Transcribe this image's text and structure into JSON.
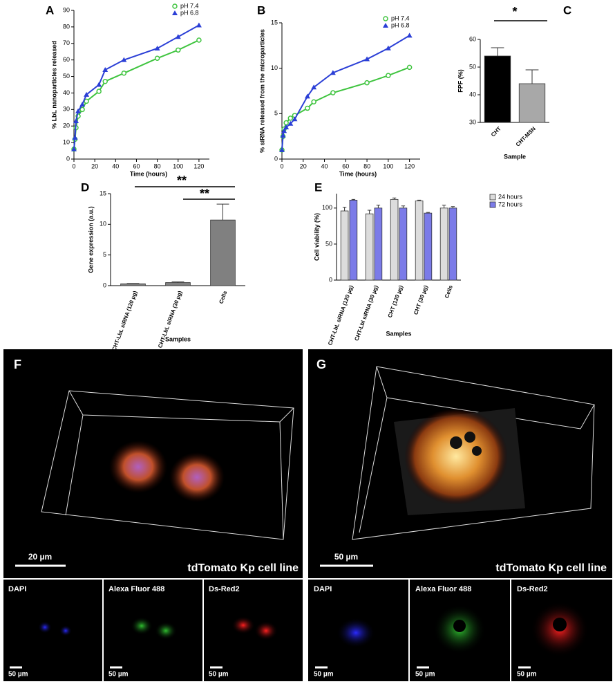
{
  "chart_data": [
    {
      "type": "line",
      "label": "A",
      "xlabel": "Time (hours)",
      "ylabel": "% LbL nanoparticles released",
      "x": [
        0,
        1,
        2,
        4,
        8,
        12,
        24,
        30,
        48,
        80,
        100,
        120
      ],
      "series": [
        {
          "name": "pH 7.4",
          "color": "#3fc43f",
          "marker": "circle",
          "values": [
            6,
            12,
            19,
            26,
            30,
            35,
            41,
            47,
            52,
            61,
            66,
            72
          ]
        },
        {
          "name": "pH 6.8",
          "color": "#2b3fd6",
          "marker": "star",
          "values": [
            6,
            13,
            23,
            29,
            33,
            39,
            45,
            54,
            60,
            67,
            74,
            81
          ]
        }
      ],
      "xlim": [
        0,
        130
      ],
      "xticks": [
        0,
        20,
        40,
        60,
        80,
        100,
        120
      ],
      "ylim": [
        0,
        90
      ],
      "yticks": [
        0,
        10,
        20,
        30,
        40,
        50,
        60,
        70,
        80,
        90
      ],
      "legend": "top-right"
    },
    {
      "type": "line",
      "label": "B",
      "xlabel": "Time (hours)",
      "ylabel": "% siRNA released from the microparticles",
      "x": [
        0,
        1,
        2,
        4,
        8,
        12,
        24,
        30,
        48,
        80,
        100,
        120
      ],
      "series": [
        {
          "name": "pH 7.4",
          "color": "#3fc43f",
          "marker": "circle",
          "values": [
            1,
            2.5,
            3.3,
            4,
            4.5,
            4.8,
            5.6,
            6.3,
            7.3,
            8.4,
            9.2,
            10.1
          ]
        },
        {
          "name": "pH 6.8",
          "color": "#2b3fd6",
          "marker": "star",
          "values": [
            1,
            2.6,
            3.1,
            3.5,
            3.9,
            4.4,
            6.9,
            7.9,
            9.5,
            11,
            12.2,
            13.6
          ]
        }
      ],
      "xlim": [
        0,
        130
      ],
      "xticks": [
        0,
        20,
        40,
        60,
        80,
        100,
        120
      ],
      "ylim": [
        0,
        15
      ],
      "yticks": [
        0,
        5,
        10,
        15
      ],
      "legend": "top-right"
    },
    {
      "type": "bar",
      "label": "C",
      "xlabel": "Sample",
      "ylabel": "FPF (%)",
      "annotations": [
        "*"
      ],
      "categories": [
        "CHT",
        "CHT-MSN"
      ],
      "series": [
        {
          "colors": [
            "#000000",
            "#a8a8a8"
          ],
          "values": [
            54,
            44
          ],
          "errors": [
            3,
            5
          ]
        }
      ],
      "ylim": [
        30,
        60
      ],
      "yticks": [
        30,
        40,
        50,
        60
      ]
    },
    {
      "type": "bar",
      "label": "D",
      "xlabel": "Samples",
      "ylabel": "Gene expression (a.u.)",
      "annotations": [
        "**",
        "**"
      ],
      "categories": [
        "CHT-LbL siRNA (120 µg)",
        "CHT-LbL siRNA (30 µg)",
        "Cells"
      ],
      "series": [
        {
          "colors": [
            "#808080",
            "#808080",
            "#808080"
          ],
          "values": [
            0.3,
            0.5,
            10.7
          ],
          "errors": [
            0.05,
            0.1,
            2.6
          ]
        }
      ],
      "ylim": [
        0,
        15
      ],
      "yticks": [
        0,
        5,
        10,
        15
      ]
    },
    {
      "type": "bar",
      "label": "E",
      "xlabel": "Samples",
      "ylabel": "Cell viability (%)",
      "categories": [
        "CHT-LbL siRNA (120 µg)",
        "CHT-Lbl siRNA (30 µg)",
        "CHT (120 µg)",
        "CHT (30 µg)",
        "Cells"
      ],
      "series": [
        {
          "name": "24 hours",
          "color": "#dcdcdc",
          "values": [
            96,
            92,
            112,
            110,
            100
          ],
          "errors": [
            5,
            5,
            2,
            1,
            4
          ]
        },
        {
          "name": "72 hours",
          "color": "#7b7be8",
          "values": [
            111,
            100,
            100,
            93,
            100
          ],
          "errors": [
            1,
            4,
            3,
            1,
            2
          ]
        }
      ],
      "ylim": [
        0,
        120
      ],
      "yticks": [
        0,
        50,
        100
      ],
      "legend": "top-right"
    }
  ],
  "images": [
    {
      "label": "F",
      "scale": "20 µm",
      "caption": "tdTomato Kp cell line",
      "channels": [
        "DAPI",
        "Alexa Fluor 488",
        "Ds-Red2"
      ],
      "channel_scales": [
        "50 µm",
        "50 µm",
        "50 µm"
      ]
    },
    {
      "label": "G",
      "scale": "50 µm",
      "caption": "tdTomato Kp cell line",
      "channels": [
        "DAPI",
        "Alexa Fluor 488",
        "Ds-Red2"
      ],
      "channel_scales": [
        "50 µm",
        "50 µm",
        "50 µm"
      ]
    }
  ]
}
